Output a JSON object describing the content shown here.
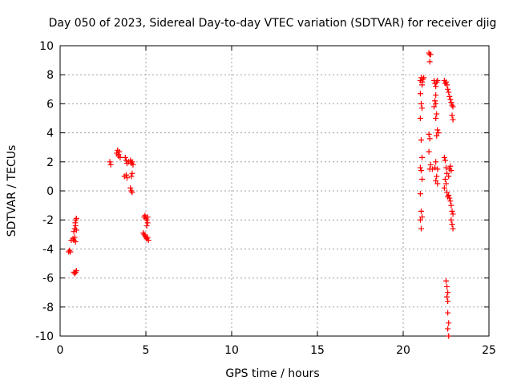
{
  "chart_data": {
    "type": "scatter",
    "title": "Day 050 of 2023, Sidereal Day-to-day VTEC variation (SDTVAR) for receiver djig",
    "xlabel": "GPS time / hours",
    "ylabel": "SDTVAR / TECUs",
    "xlim": [
      0,
      25
    ],
    "ylim": [
      -10,
      10
    ],
    "x_ticks": [
      0,
      5,
      10,
      15,
      20,
      25
    ],
    "y_ticks": [
      -10,
      -8,
      -6,
      -4,
      -2,
      0,
      2,
      4,
      6,
      8,
      10
    ],
    "grid": true,
    "marker": "plus",
    "color": "#ff0000",
    "series": [
      {
        "name": "SDTVAR",
        "points": [
          [
            0.5,
            -4.2
          ],
          [
            0.55,
            -4.1
          ],
          [
            0.6,
            -4.2
          ],
          [
            0.65,
            -3.4
          ],
          [
            0.75,
            -3.3
          ],
          [
            0.8,
            -3.4
          ],
          [
            0.85,
            -3.2
          ],
          [
            0.9,
            -3.5
          ],
          [
            0.8,
            -2.8
          ],
          [
            0.85,
            -2.6
          ],
          [
            0.9,
            -2.4
          ],
          [
            0.95,
            -2.7
          ],
          [
            0.88,
            -2.2
          ],
          [
            0.92,
            -2.0
          ],
          [
            0.95,
            -1.9
          ],
          [
            0.8,
            -5.6
          ],
          [
            0.85,
            -5.7
          ],
          [
            0.9,
            -5.6
          ],
          [
            0.95,
            -5.5
          ],
          [
            2.9,
            2.0
          ],
          [
            2.95,
            1.8
          ],
          [
            3.3,
            2.6
          ],
          [
            3.35,
            2.8
          ],
          [
            3.4,
            2.5
          ],
          [
            3.45,
            2.7
          ],
          [
            3.5,
            2.3
          ],
          [
            3.4,
            2.4
          ],
          [
            3.8,
            2.3
          ],
          [
            3.85,
            2.1
          ],
          [
            3.9,
            1.9
          ],
          [
            3.75,
            1.0
          ],
          [
            3.85,
            1.1
          ],
          [
            3.9,
            0.9
          ],
          [
            4.0,
            2.0
          ],
          [
            4.1,
            2.1
          ],
          [
            4.15,
            1.9
          ],
          [
            4.2,
            2.0
          ],
          [
            4.25,
            1.8
          ],
          [
            4.2,
            1.2
          ],
          [
            4.15,
            1.0
          ],
          [
            4.1,
            0.2
          ],
          [
            4.15,
            0.0
          ],
          [
            4.2,
            -0.1
          ],
          [
            4.9,
            -1.8
          ],
          [
            4.95,
            -1.7
          ],
          [
            5.0,
            -1.9
          ],
          [
            5.05,
            -2.0
          ],
          [
            5.1,
            -1.8
          ],
          [
            5.1,
            -2.2
          ],
          [
            5.05,
            -2.4
          ],
          [
            4.85,
            -2.9
          ],
          [
            4.9,
            -3.0
          ],
          [
            4.95,
            -3.1
          ],
          [
            5.0,
            -3.2
          ],
          [
            5.05,
            -3.3
          ],
          [
            5.1,
            -3.2
          ],
          [
            5.15,
            -3.4
          ],
          [
            21.0,
            7.6
          ],
          [
            21.05,
            7.8
          ],
          [
            21.1,
            7.5
          ],
          [
            21.15,
            7.7
          ],
          [
            21.2,
            7.8
          ],
          [
            21.1,
            7.3
          ],
          [
            21.0,
            6.7
          ],
          [
            21.05,
            6.0
          ],
          [
            21.1,
            5.7
          ],
          [
            21.0,
            5.0
          ],
          [
            21.05,
            3.5
          ],
          [
            21.1,
            2.3
          ],
          [
            21.0,
            1.6
          ],
          [
            21.05,
            1.4
          ],
          [
            21.1,
            0.8
          ],
          [
            21.0,
            -0.2
          ],
          [
            21.05,
            -1.4
          ],
          [
            21.1,
            -1.8
          ],
          [
            21.0,
            -2.0
          ],
          [
            21.05,
            -2.6
          ],
          [
            21.5,
            9.5
          ],
          [
            21.55,
            9.4
          ],
          [
            21.6,
            9.4
          ],
          [
            21.55,
            8.9
          ],
          [
            21.5,
            3.9
          ],
          [
            21.55,
            3.6
          ],
          [
            21.5,
            2.7
          ],
          [
            21.6,
            1.8
          ],
          [
            21.7,
            1.5
          ],
          [
            21.55,
            1.5
          ],
          [
            21.8,
            7.6
          ],
          [
            21.85,
            7.4
          ],
          [
            21.9,
            7.2
          ],
          [
            21.95,
            7.5
          ],
          [
            22.0,
            7.6
          ],
          [
            21.9,
            6.6
          ],
          [
            21.85,
            6.2
          ],
          [
            21.9,
            6.0
          ],
          [
            21.8,
            5.8
          ],
          [
            21.95,
            5.3
          ],
          [
            21.9,
            5.0
          ],
          [
            22.0,
            4.2
          ],
          [
            22.05,
            4.0
          ],
          [
            21.95,
            3.8
          ],
          [
            21.9,
            2.0
          ],
          [
            22.0,
            1.5
          ],
          [
            21.95,
            1.0
          ],
          [
            21.9,
            0.7
          ],
          [
            22.0,
            0.5
          ],
          [
            21.85,
            1.6
          ],
          [
            22.4,
            7.6
          ],
          [
            22.45,
            7.4
          ],
          [
            22.5,
            7.5
          ],
          [
            22.55,
            7.3
          ],
          [
            22.6,
            7.0
          ],
          [
            22.65,
            6.8
          ],
          [
            22.7,
            6.5
          ],
          [
            22.75,
            6.3
          ],
          [
            22.8,
            6.1
          ],
          [
            22.85,
            5.9
          ],
          [
            22.9,
            5.8
          ],
          [
            22.85,
            5.2
          ],
          [
            22.9,
            4.9
          ],
          [
            22.4,
            2.3
          ],
          [
            22.45,
            2.1
          ],
          [
            22.5,
            1.6
          ],
          [
            22.55,
            1.2
          ],
          [
            22.45,
            0.8
          ],
          [
            22.5,
            0.5
          ],
          [
            22.4,
            0.2
          ],
          [
            22.55,
            -0.1
          ],
          [
            22.6,
            -0.4
          ],
          [
            22.65,
            1.0
          ],
          [
            22.7,
            1.5
          ],
          [
            22.75,
            1.7
          ],
          [
            22.8,
            1.4
          ],
          [
            22.65,
            -0.3
          ],
          [
            22.7,
            -0.5
          ],
          [
            22.75,
            -0.7
          ],
          [
            22.8,
            -1.0
          ],
          [
            22.85,
            -1.4
          ],
          [
            22.9,
            -1.6
          ],
          [
            22.8,
            -2.0
          ],
          [
            22.85,
            -2.3
          ],
          [
            22.9,
            -2.6
          ],
          [
            22.5,
            -6.2
          ],
          [
            22.55,
            -6.6
          ],
          [
            22.6,
            -7.0
          ],
          [
            22.55,
            -7.3
          ],
          [
            22.6,
            -7.6
          ],
          [
            22.6,
            -8.4
          ],
          [
            22.65,
            -9.1
          ],
          [
            22.6,
            -9.5
          ],
          [
            22.65,
            -10.0
          ]
        ]
      }
    ]
  }
}
